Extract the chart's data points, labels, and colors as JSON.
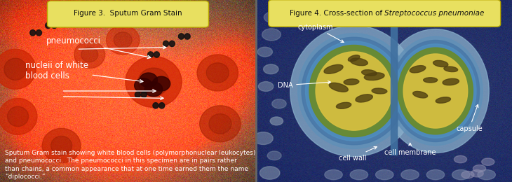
{
  "fig_width": 7.3,
  "fig_height": 2.6,
  "dpi": 100,
  "left_panel": {
    "title": "Figure 3.  Sputum Gram Stain",
    "title_box_color": "#e8e060",
    "title_box_edge": "#b8a800",
    "title_text_color": "#111111",
    "title_fontsize": 7.5,
    "caption_lines": [
      "Sputum Gram stain showing white blood cells (polymorphonuclear leukocytes)",
      "and pneumococci.  The pneumococci in this specimen are in pairs rather",
      "than chains, a common appearance that at one time earned them the name",
      "“diplococci.”"
    ],
    "caption_fontsize": 6.5,
    "caption_color": "white"
  },
  "right_panel": {
    "title_plain": "Figure 4. Cross-section of ",
    "title_italic": "Streptococcus pneumoniae",
    "title_box_color": "#e8e060",
    "title_box_edge": "#b8a800",
    "title_text_color": "#111111",
    "title_fontsize": 7.5,
    "bg_color": "#1a2460"
  }
}
